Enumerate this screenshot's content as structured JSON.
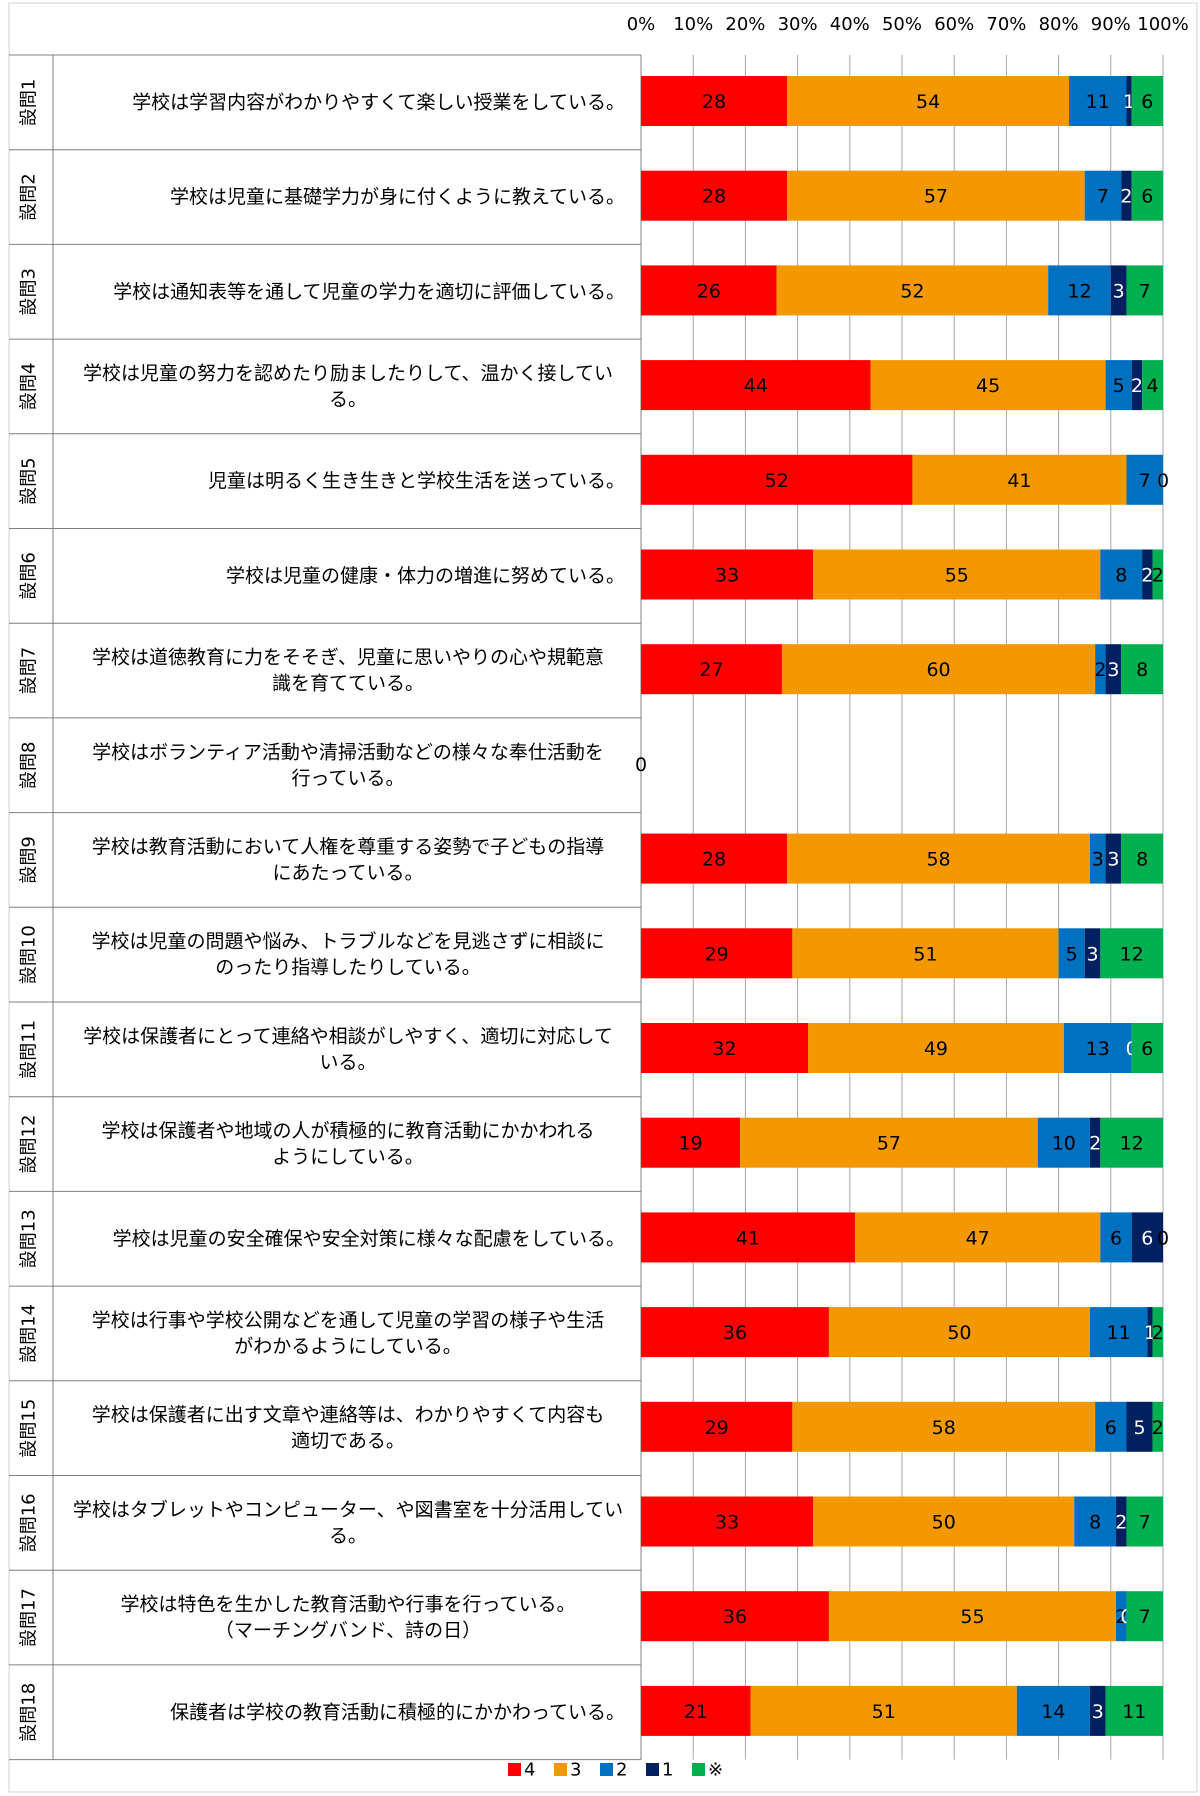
{
  "chart_data": {
    "type": "bar",
    "orientation": "horizontal",
    "stacked": true,
    "xlim": [
      0,
      100
    ],
    "x_ticks": [
      "0%",
      "10%",
      "20%",
      "30%",
      "40%",
      "50%",
      "60%",
      "70%",
      "80%",
      "90%",
      "100%"
    ],
    "grid": true,
    "legend_position": "bottom",
    "series": [
      {
        "name": "4",
        "color": "#ff0000"
      },
      {
        "name": "3",
        "color": "#f39800"
      },
      {
        "name": "2",
        "color": "#0070c0"
      },
      {
        "name": "1",
        "color": "#002060"
      },
      {
        "name": "※",
        "color": "#00b050"
      }
    ],
    "categories": [
      {
        "id": "設問1",
        "text": [
          "学校は学習内容がわかりやすくて楽しい授業をしている。"
        ],
        "values": [
          28,
          54,
          11,
          1,
          6
        ]
      },
      {
        "id": "設問2",
        "text": [
          "学校は児童に基礎学力が身に付くように教えている。"
        ],
        "values": [
          28,
          57,
          7,
          2,
          6
        ]
      },
      {
        "id": "設問3",
        "text": [
          "学校は通知表等を通して児童の学力を適切に評価している。"
        ],
        "values": [
          26,
          52,
          12,
          3,
          7
        ]
      },
      {
        "id": "設問4",
        "text": [
          "学校は児童の努力を認めたり励ましたりして、温かく接してい",
          "る。"
        ],
        "values": [
          44,
          45,
          5,
          2,
          4
        ]
      },
      {
        "id": "設問5",
        "text": [
          "児童は明るく生き生きと学校生活を送っている。"
        ],
        "values": [
          52,
          41,
          7,
          0,
          0
        ]
      },
      {
        "id": "設問6",
        "text": [
          "学校は児童の健康・体力の増進に努めている。"
        ],
        "values": [
          33,
          55,
          8,
          2,
          2
        ]
      },
      {
        "id": "設問7",
        "text": [
          "学校は道徳教育に力をそそぎ、児童に思いやりの心や規範意",
          "識を育てている。"
        ],
        "values": [
          27,
          60,
          2,
          3,
          8
        ]
      },
      {
        "id": "設問8",
        "text": [
          "学校はボランティア活動や清掃活動などの様々な奉仕活動を",
          "行っている。"
        ],
        "values": [
          0,
          0,
          0,
          0,
          0
        ]
      },
      {
        "id": "設問9",
        "text": [
          "学校は教育活動において人権を尊重する姿勢で子どもの指導",
          "にあたっている。"
        ],
        "values": [
          28,
          58,
          3,
          3,
          8
        ]
      },
      {
        "id": "設問10",
        "text": [
          "学校は児童の問題や悩み、トラブルなどを見逃さずに相談に",
          "のったり指導したりしている。"
        ],
        "values": [
          29,
          51,
          5,
          3,
          12
        ]
      },
      {
        "id": "設問11",
        "text": [
          "学校は保護者にとって連絡や相談がしやすく、適切に対応して",
          "いる。"
        ],
        "values": [
          32,
          49,
          13,
          0,
          6
        ]
      },
      {
        "id": "設問12",
        "text": [
          "学校は保護者や地域の人が積極的に教育活動にかかわれる",
          "ようにしている。"
        ],
        "values": [
          19,
          57,
          10,
          2,
          12
        ]
      },
      {
        "id": "設問13",
        "text": [
          "学校は児童の安全確保や安全対策に様々な配慮をしている。"
        ],
        "values": [
          41,
          47,
          6,
          6,
          0
        ]
      },
      {
        "id": "設問14",
        "text": [
          "学校は行事や学校公開などを通して児童の学習の様子や生活",
          "がわかるようにしている。"
        ],
        "values": [
          36,
          50,
          11,
          1,
          2
        ]
      },
      {
        "id": "設問15",
        "text": [
          "学校は保護者に出す文章や連絡等は、わかりやすくて内容も",
          "適切である。"
        ],
        "values": [
          29,
          58,
          6,
          5,
          2
        ]
      },
      {
        "id": "設問16",
        "text": [
          "学校はタブレットやコンピューター、や図書室を十分活用してい",
          "る。"
        ],
        "values": [
          33,
          50,
          8,
          2,
          7
        ]
      },
      {
        "id": "設問17",
        "text": [
          "学校は特色を生かした教育活動や行事を行っている。",
          "（マーチングバンド、詩の日）"
        ],
        "values": [
          36,
          55,
          2,
          0,
          7
        ]
      },
      {
        "id": "設問18",
        "text": [
          "保護者は学校の教育活動に積極的にかかわっている。"
        ],
        "values": [
          21,
          51,
          14,
          3,
          11
        ]
      }
    ]
  }
}
